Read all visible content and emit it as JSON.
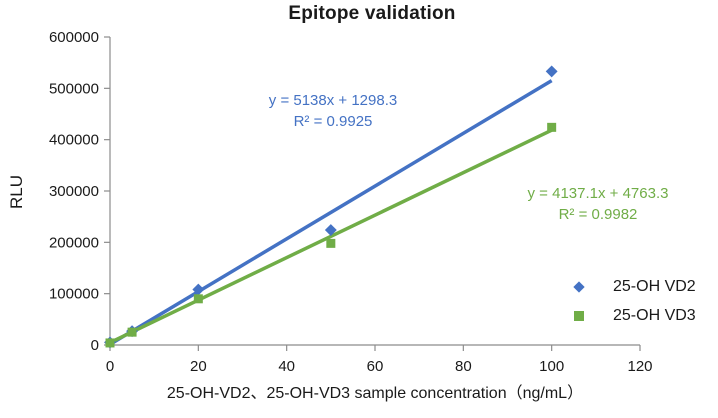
{
  "chart_data": {
    "type": "scatter",
    "title": "Epitope validation",
    "xlabel": "25-OH-VD2、25-OH-VD3 sample concentration（ng/mL）",
    "ylabel": "RLU",
    "xlim": [
      0,
      120
    ],
    "ylim": [
      0,
      600000
    ],
    "x_ticks": [
      0,
      20,
      40,
      60,
      80,
      100,
      120
    ],
    "y_ticks": [
      0,
      100000,
      200000,
      300000,
      400000,
      500000,
      600000
    ],
    "grid": false,
    "legend_position": "right",
    "axis_color": "#8c8c8c",
    "text_color": "#1a1a1a",
    "series": [
      {
        "name": "25-OH VD2",
        "marker": "diamond",
        "color": "#4472C4",
        "x": [
          0,
          5,
          20,
          50,
          100
        ],
        "y": [
          5000,
          27000,
          108000,
          224000,
          533000
        ],
        "trendline": {
          "slope": 5138,
          "intercept": 1298.3,
          "x_range": [
            0,
            100
          ],
          "equation": "y = 5138x + 1298.3",
          "r_squared": "R² = 0.9925"
        }
      },
      {
        "name": "25-OH VD3",
        "marker": "square",
        "color": "#70AD47",
        "x": [
          0,
          5,
          20,
          50,
          100
        ],
        "y": [
          4000,
          25000,
          90000,
          198000,
          424000
        ],
        "trendline": {
          "slope": 4137.1,
          "intercept": 4763.3,
          "x_range": [
            0,
            100
          ],
          "equation": "y = 4137.1x + 4763.3",
          "r_squared": "R² = 0.9982"
        }
      }
    ]
  }
}
